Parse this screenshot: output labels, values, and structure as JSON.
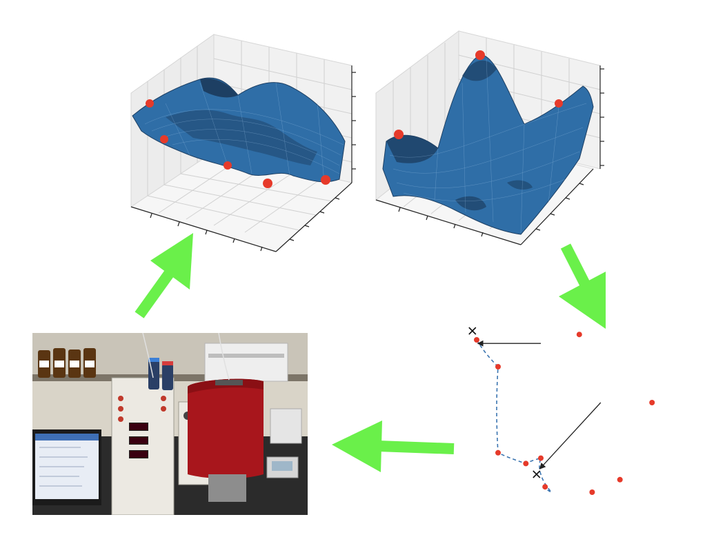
{
  "colors": {
    "surface": "#2f6ea7",
    "surface_dark": "#1d3f63",
    "mesh": "#9cc3e6",
    "point": "#e63a2a",
    "arrow": "#6af04a",
    "dashed_path": "#3a74b0",
    "axis": "#222222",
    "grid": "#d6d6d6",
    "pane": "#f1f1f1"
  },
  "surfaces": [
    {
      "name": "surface-smooth",
      "peaks": "low",
      "points": 6
    },
    {
      "name": "surface-peaked",
      "peaks": "high",
      "points": 3
    }
  ],
  "photo": {
    "subject": "lab-instrument-photo"
  },
  "chart_data": {
    "type": "scatter",
    "title": "",
    "xlabel": "",
    "ylabel": "",
    "series": [
      {
        "values": [
          [
            0.1,
            0.05
          ],
          [
            0.2,
            0.2
          ],
          [
            0.58,
            0.02
          ],
          [
            0.2,
            0.68
          ],
          [
            0.33,
            0.74
          ],
          [
            0.4,
            0.71
          ],
          [
            0.42,
            0.87
          ],
          [
            0.64,
            0.9
          ],
          [
            0.92,
            0.4
          ],
          [
            0.77,
            0.83
          ]
        ]
      }
    ],
    "markers": [
      [
        0.08,
        0.0
      ],
      [
        0.38,
        0.8
      ]
    ]
  },
  "icons": [
    "arrow-up-right-icon",
    "arrow-down-right-icon",
    "arrow-left-icon"
  ]
}
